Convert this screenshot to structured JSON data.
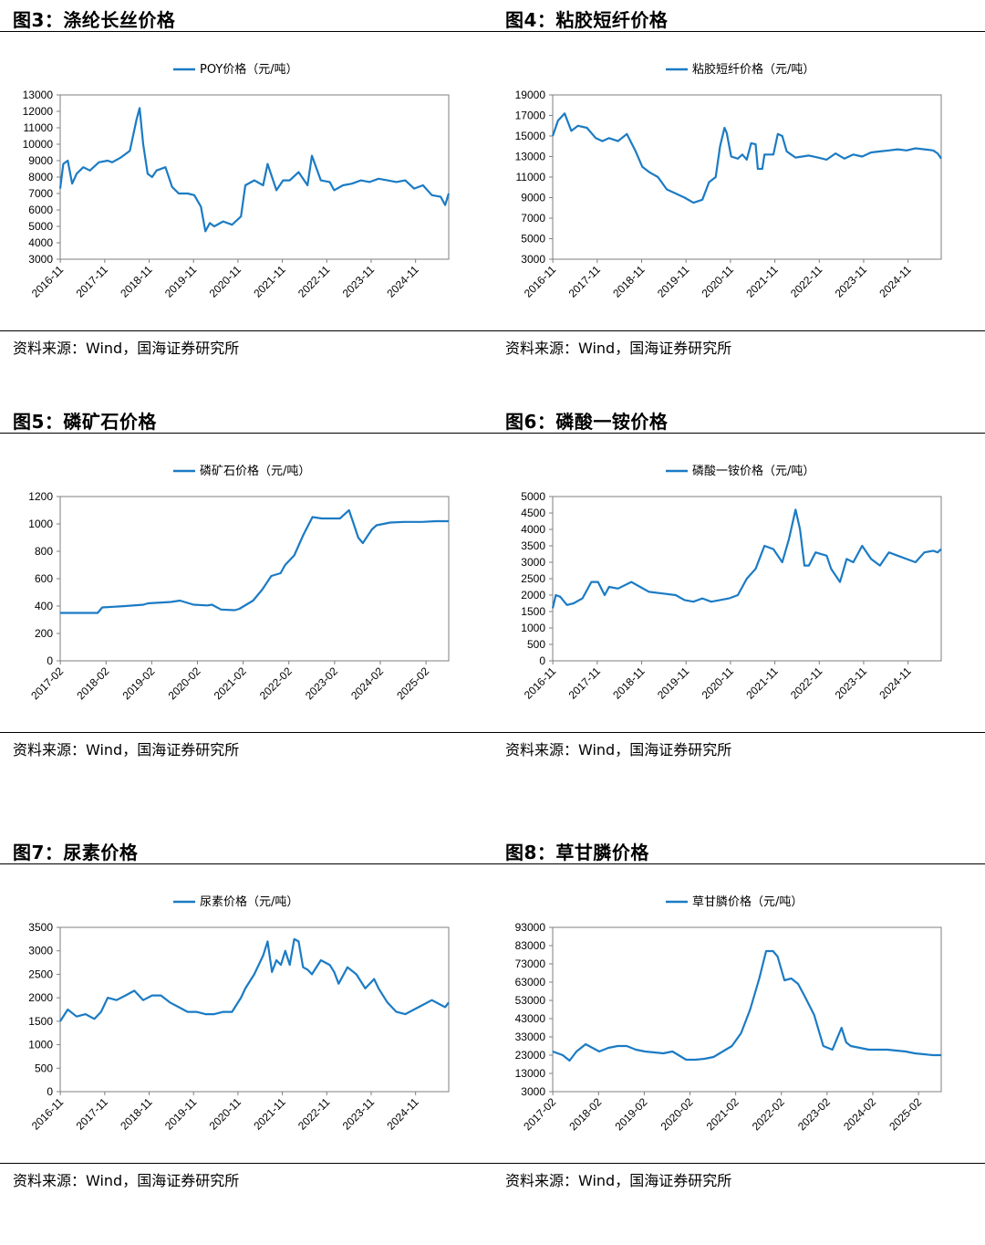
{
  "charts": [
    {
      "figure_title": "图3：涤纶长丝价格",
      "source": "资料来源：Wind，国海证券研究所",
      "chart_data": {
        "type": "line",
        "series": [
          {
            "name": "POY价格（元/吨）",
            "color": "#1b7bc4"
          }
        ],
        "ylim": [
          3000,
          13000
        ],
        "yticks": [
          "3000",
          "4000",
          "5000",
          "6000",
          "7000",
          "8000",
          "9000",
          "10000",
          "11000",
          "12000",
          "13000"
        ],
        "xlim": [
          2016.83,
          2025.58
        ],
        "xticks": [
          "2016-11",
          "2017-11",
          "2018-11",
          "2019-11",
          "2020-11",
          "2021-11",
          "2022-11",
          "2023-11",
          "2024-11"
        ],
        "x": [
          2016.83,
          2016.9,
          2017.0,
          2017.1,
          2017.2,
          2017.35,
          2017.5,
          2017.7,
          2017.9,
          2018.0,
          2018.2,
          2018.4,
          2018.55,
          2018.62,
          2018.7,
          2018.8,
          2018.9,
          2019.0,
          2019.2,
          2019.35,
          2019.5,
          2019.7,
          2019.85,
          2020.0,
          2020.1,
          2020.2,
          2020.3,
          2020.5,
          2020.7,
          2020.9,
          2021.0,
          2021.2,
          2021.4,
          2021.5,
          2021.7,
          2021.85,
          2022.0,
          2022.2,
          2022.4,
          2022.5,
          2022.7,
          2022.9,
          2023.0,
          2023.2,
          2023.4,
          2023.6,
          2023.8,
          2024.0,
          2024.2,
          2024.4,
          2024.6,
          2024.8,
          2025.0,
          2025.2,
          2025.4,
          2025.5,
          2025.58
        ],
        "y": [
          7300,
          8800,
          9000,
          7600,
          8200,
          8600,
          8400,
          8900,
          9000,
          8900,
          9200,
          9600,
          11500,
          12200,
          10000,
          8200,
          8000,
          8400,
          8600,
          7400,
          7000,
          7000,
          6900,
          6200,
          4700,
          5200,
          5000,
          5300,
          5100,
          5600,
          7500,
          7800,
          7500,
          8800,
          7200,
          7800,
          7800,
          8300,
          7500,
          9300,
          7800,
          7700,
          7200,
          7500,
          7600,
          7800,
          7700,
          7900,
          7800,
          7700,
          7800,
          7300,
          7500,
          6900,
          6800,
          6300,
          7000
        ]
      }
    },
    {
      "figure_title": "图4：粘胶短纤价格",
      "source": "资料来源：Wind，国海证券研究所",
      "chart_data": {
        "type": "line",
        "series": [
          {
            "name": "粘胶短纤价格（元/吨）",
            "color": "#1b7bc4"
          }
        ],
        "ylim": [
          3000,
          19000
        ],
        "yticks": [
          "3000",
          "5000",
          "7000",
          "9000",
          "11000",
          "13000",
          "15000",
          "17000",
          "19000"
        ],
        "xlim": [
          2016.83,
          2025.58
        ],
        "xticks": [
          "2016-11",
          "2017-11",
          "2018-11",
          "2019-11",
          "2020-11",
          "2021-11",
          "2022-11",
          "2023-11",
          "2024-11"
        ],
        "x": [
          2016.83,
          2016.95,
          2017.1,
          2017.25,
          2017.4,
          2017.6,
          2017.8,
          2017.95,
          2018.1,
          2018.3,
          2018.5,
          2018.7,
          2018.85,
          2019.0,
          2019.2,
          2019.4,
          2019.6,
          2019.8,
          2020.0,
          2020.2,
          2020.35,
          2020.5,
          2020.6,
          2020.7,
          2020.75,
          2020.85,
          2021.0,
          2021.1,
          2021.2,
          2021.3,
          2021.4,
          2021.45,
          2021.55,
          2021.6,
          2021.8,
          2021.9,
          2022.0,
          2022.1,
          2022.2,
          2022.3,
          2022.45,
          2022.6,
          2022.8,
          2023.0,
          2023.2,
          2023.4,
          2023.6,
          2023.8,
          2024.0,
          2024.2,
          2024.4,
          2024.6,
          2024.8,
          2025.0,
          2025.2,
          2025.4,
          2025.5,
          2025.58
        ],
        "y": [
          15000,
          16500,
          17200,
          15500,
          16000,
          15800,
          14800,
          14500,
          14800,
          14500,
          15200,
          13500,
          12000,
          11500,
          11000,
          9800,
          9400,
          9000,
          8500,
          8800,
          10500,
          11000,
          14000,
          15800,
          15300,
          13000,
          12800,
          13200,
          12700,
          14300,
          14200,
          11800,
          11800,
          13200,
          13200,
          15200,
          15000,
          13500,
          13200,
          12900,
          13000,
          13100,
          12900,
          12700,
          13300,
          12800,
          13200,
          13000,
          13400,
          13500,
          13600,
          13700,
          13600,
          13800,
          13700,
          13600,
          13300,
          12800
        ]
      }
    },
    {
      "figure_title": "图5：磷矿石价格",
      "source": "资料来源：Wind，国海证券研究所",
      "chart_data": {
        "type": "line",
        "series": [
          {
            "name": "磷矿石价格（元/吨）",
            "color": "#1b7bc4"
          }
        ],
        "ylim": [
          0,
          1200
        ],
        "yticks": [
          "0",
          "200",
          "400",
          "600",
          "800",
          "1000",
          "1200"
        ],
        "xlim": [
          2017.08,
          2025.58
        ],
        "xticks": [
          "2017-02",
          "2018-02",
          "2019-02",
          "2020-02",
          "2021-02",
          "2022-02",
          "2023-02",
          "2024-02",
          "2025-02"
        ],
        "x": [
          2017.08,
          2017.6,
          2017.9,
          2018.0,
          2018.5,
          2018.9,
          2019.0,
          2019.5,
          2019.7,
          2020.0,
          2020.3,
          2020.4,
          2020.6,
          2020.9,
          2021.0,
          2021.3,
          2021.5,
          2021.7,
          2021.9,
          2022.0,
          2022.2,
          2022.4,
          2022.6,
          2022.8,
          2022.95,
          2023.2,
          2023.4,
          2023.5,
          2023.6,
          2023.7,
          2023.9,
          2024.0,
          2024.3,
          2024.6,
          2025.0,
          2025.3,
          2025.58
        ],
        "y": [
          350,
          350,
          350,
          390,
          400,
          410,
          420,
          430,
          440,
          410,
          405,
          410,
          375,
          370,
          380,
          440,
          520,
          620,
          640,
          700,
          770,
          920,
          1050,
          1040,
          1040,
          1040,
          1100,
          1000,
          900,
          860,
          960,
          990,
          1010,
          1015,
          1015,
          1020,
          1020
        ]
      }
    },
    {
      "figure_title": "图6：磷酸一铵价格",
      "source": "资料来源：Wind，国海证券研究所",
      "chart_data": {
        "type": "line",
        "series": [
          {
            "name": "磷酸一铵价格（元/吨）",
            "color": "#1b7bc4"
          }
        ],
        "ylim": [
          0,
          5000
        ],
        "yticks": [
          "0",
          "500",
          "1000",
          "1500",
          "2000",
          "2500",
          "3000",
          "3500",
          "4000",
          "4500",
          "5000"
        ],
        "xlim": [
          2016.83,
          2025.58
        ],
        "xticks": [
          "2016-11",
          "2017-11",
          "2018-11",
          "2019-11",
          "2020-11",
          "2021-11",
          "2022-11",
          "2023-11",
          "2024-11"
        ],
        "x": [
          2016.83,
          2016.9,
          2017.0,
          2017.15,
          2017.3,
          2017.5,
          2017.7,
          2017.85,
          2018.0,
          2018.1,
          2018.3,
          2018.6,
          2018.8,
          2019.0,
          2019.3,
          2019.6,
          2019.8,
          2020.0,
          2020.2,
          2020.4,
          2020.6,
          2020.8,
          2021.0,
          2021.2,
          2021.4,
          2021.6,
          2021.8,
          2022.0,
          2022.15,
          2022.3,
          2022.4,
          2022.5,
          2022.6,
          2022.75,
          2023.0,
          2023.1,
          2023.3,
          2023.45,
          2023.6,
          2023.8,
          2024.0,
          2024.2,
          2024.4,
          2024.6,
          2024.8,
          2025.0,
          2025.2,
          2025.4,
          2025.5,
          2025.58
        ],
        "y": [
          1600,
          2000,
          1950,
          1700,
          1750,
          1900,
          2400,
          2400,
          2000,
          2250,
          2200,
          2400,
          2250,
          2100,
          2050,
          2000,
          1850,
          1800,
          1900,
          1800,
          1850,
          1900,
          2000,
          2500,
          2800,
          3500,
          3400,
          3000,
          3700,
          4600,
          4000,
          2900,
          2900,
          3300,
          3200,
          2800,
          2400,
          3100,
          3000,
          3500,
          3100,
          2900,
          3300,
          3200,
          3100,
          3000,
          3300,
          3350,
          3300,
          3400
        ]
      }
    },
    {
      "figure_title": "图7：尿素价格",
      "source": "资料来源：Wind，国海证券研究所",
      "chart_data": {
        "type": "line",
        "series": [
          {
            "name": "尿素价格（元/吨）",
            "color": "#1b7bc4"
          }
        ],
        "ylim": [
          0,
          3500
        ],
        "yticks": [
          "0",
          "500",
          "1000",
          "1500",
          "2000",
          "2500",
          "3000",
          "3500"
        ],
        "xlim": [
          2016.83,
          2025.58
        ],
        "xticks": [
          "2016-11",
          "2017-11",
          "2018-11",
          "2019-11",
          "2020-11",
          "2021-11",
          "2022-11",
          "2023-11",
          "2024-11"
        ],
        "x": [
          2016.83,
          2017.0,
          2017.2,
          2017.4,
          2017.6,
          2017.75,
          2017.9,
          2018.1,
          2018.3,
          2018.5,
          2018.7,
          2018.9,
          2019.1,
          2019.3,
          2019.5,
          2019.7,
          2019.9,
          2020.1,
          2020.3,
          2020.5,
          2020.7,
          2020.9,
          2021.0,
          2021.2,
          2021.4,
          2021.5,
          2021.6,
          2021.7,
          2021.8,
          2021.9,
          2022.0,
          2022.1,
          2022.2,
          2022.3,
          2022.4,
          2022.5,
          2022.7,
          2022.9,
          2023.0,
          2023.1,
          2023.3,
          2023.5,
          2023.7,
          2023.9,
          2024.0,
          2024.2,
          2024.4,
          2024.6,
          2024.8,
          2025.0,
          2025.2,
          2025.4,
          2025.5,
          2025.58
        ],
        "y": [
          1500,
          1750,
          1600,
          1650,
          1550,
          1700,
          2000,
          1950,
          2050,
          2150,
          1950,
          2050,
          2050,
          1900,
          1800,
          1700,
          1700,
          1650,
          1650,
          1700,
          1700,
          2000,
          2200,
          2500,
          2900,
          3200,
          2550,
          2800,
          2700,
          3000,
          2700,
          3250,
          3200,
          2650,
          2600,
          2500,
          2800,
          2700,
          2550,
          2300,
          2650,
          2500,
          2200,
          2400,
          2200,
          1900,
          1700,
          1650,
          1750,
          1850,
          1950,
          1850,
          1800,
          1900
        ]
      }
    },
    {
      "figure_title": "图8：草甘膦价格",
      "source": "资料来源：Wind，国海证券研究所",
      "chart_data": {
        "type": "line",
        "series": [
          {
            "name": "草甘膦价格（元/吨）",
            "color": "#1b7bc4"
          }
        ],
        "ylim": [
          3000,
          93000
        ],
        "yticks": [
          "3000",
          "13000",
          "23000",
          "33000",
          "43000",
          "53000",
          "63000",
          "73000",
          "83000",
          "93000"
        ],
        "xlim": [
          2017.08,
          2025.58
        ],
        "xticks": [
          "2017-02",
          "2018-02",
          "2019-02",
          "2020-02",
          "2021-02",
          "2022-02",
          "2023-02",
          "2024-02",
          "2025-02"
        ],
        "x": [
          2017.08,
          2017.3,
          2017.45,
          2017.6,
          2017.8,
          2017.95,
          2018.1,
          2018.3,
          2018.5,
          2018.7,
          2018.9,
          2019.1,
          2019.3,
          2019.5,
          2019.7,
          2019.9,
          2020.0,
          2020.2,
          2020.4,
          2020.6,
          2020.8,
          2021.0,
          2021.2,
          2021.4,
          2021.6,
          2021.75,
          2021.9,
          2022.0,
          2022.15,
          2022.3,
          2022.45,
          2022.6,
          2022.8,
          2023.0,
          2023.2,
          2023.4,
          2023.5,
          2023.6,
          2023.8,
          2024.0,
          2024.2,
          2024.4,
          2024.6,
          2024.8,
          2025.0,
          2025.2,
          2025.4,
          2025.58
        ],
        "y": [
          25000,
          23000,
          20000,
          25000,
          29000,
          27000,
          25000,
          27000,
          28000,
          28000,
          26000,
          25000,
          24500,
          24000,
          25000,
          22000,
          20500,
          20500,
          21000,
          22000,
          25000,
          28000,
          35000,
          48000,
          65000,
          80000,
          80000,
          77000,
          64000,
          65000,
          62000,
          55000,
          45000,
          28000,
          26000,
          38000,
          30000,
          28000,
          27000,
          26000,
          26000,
          26000,
          25500,
          25000,
          24000,
          23500,
          23000,
          23000
        ]
      }
    }
  ]
}
